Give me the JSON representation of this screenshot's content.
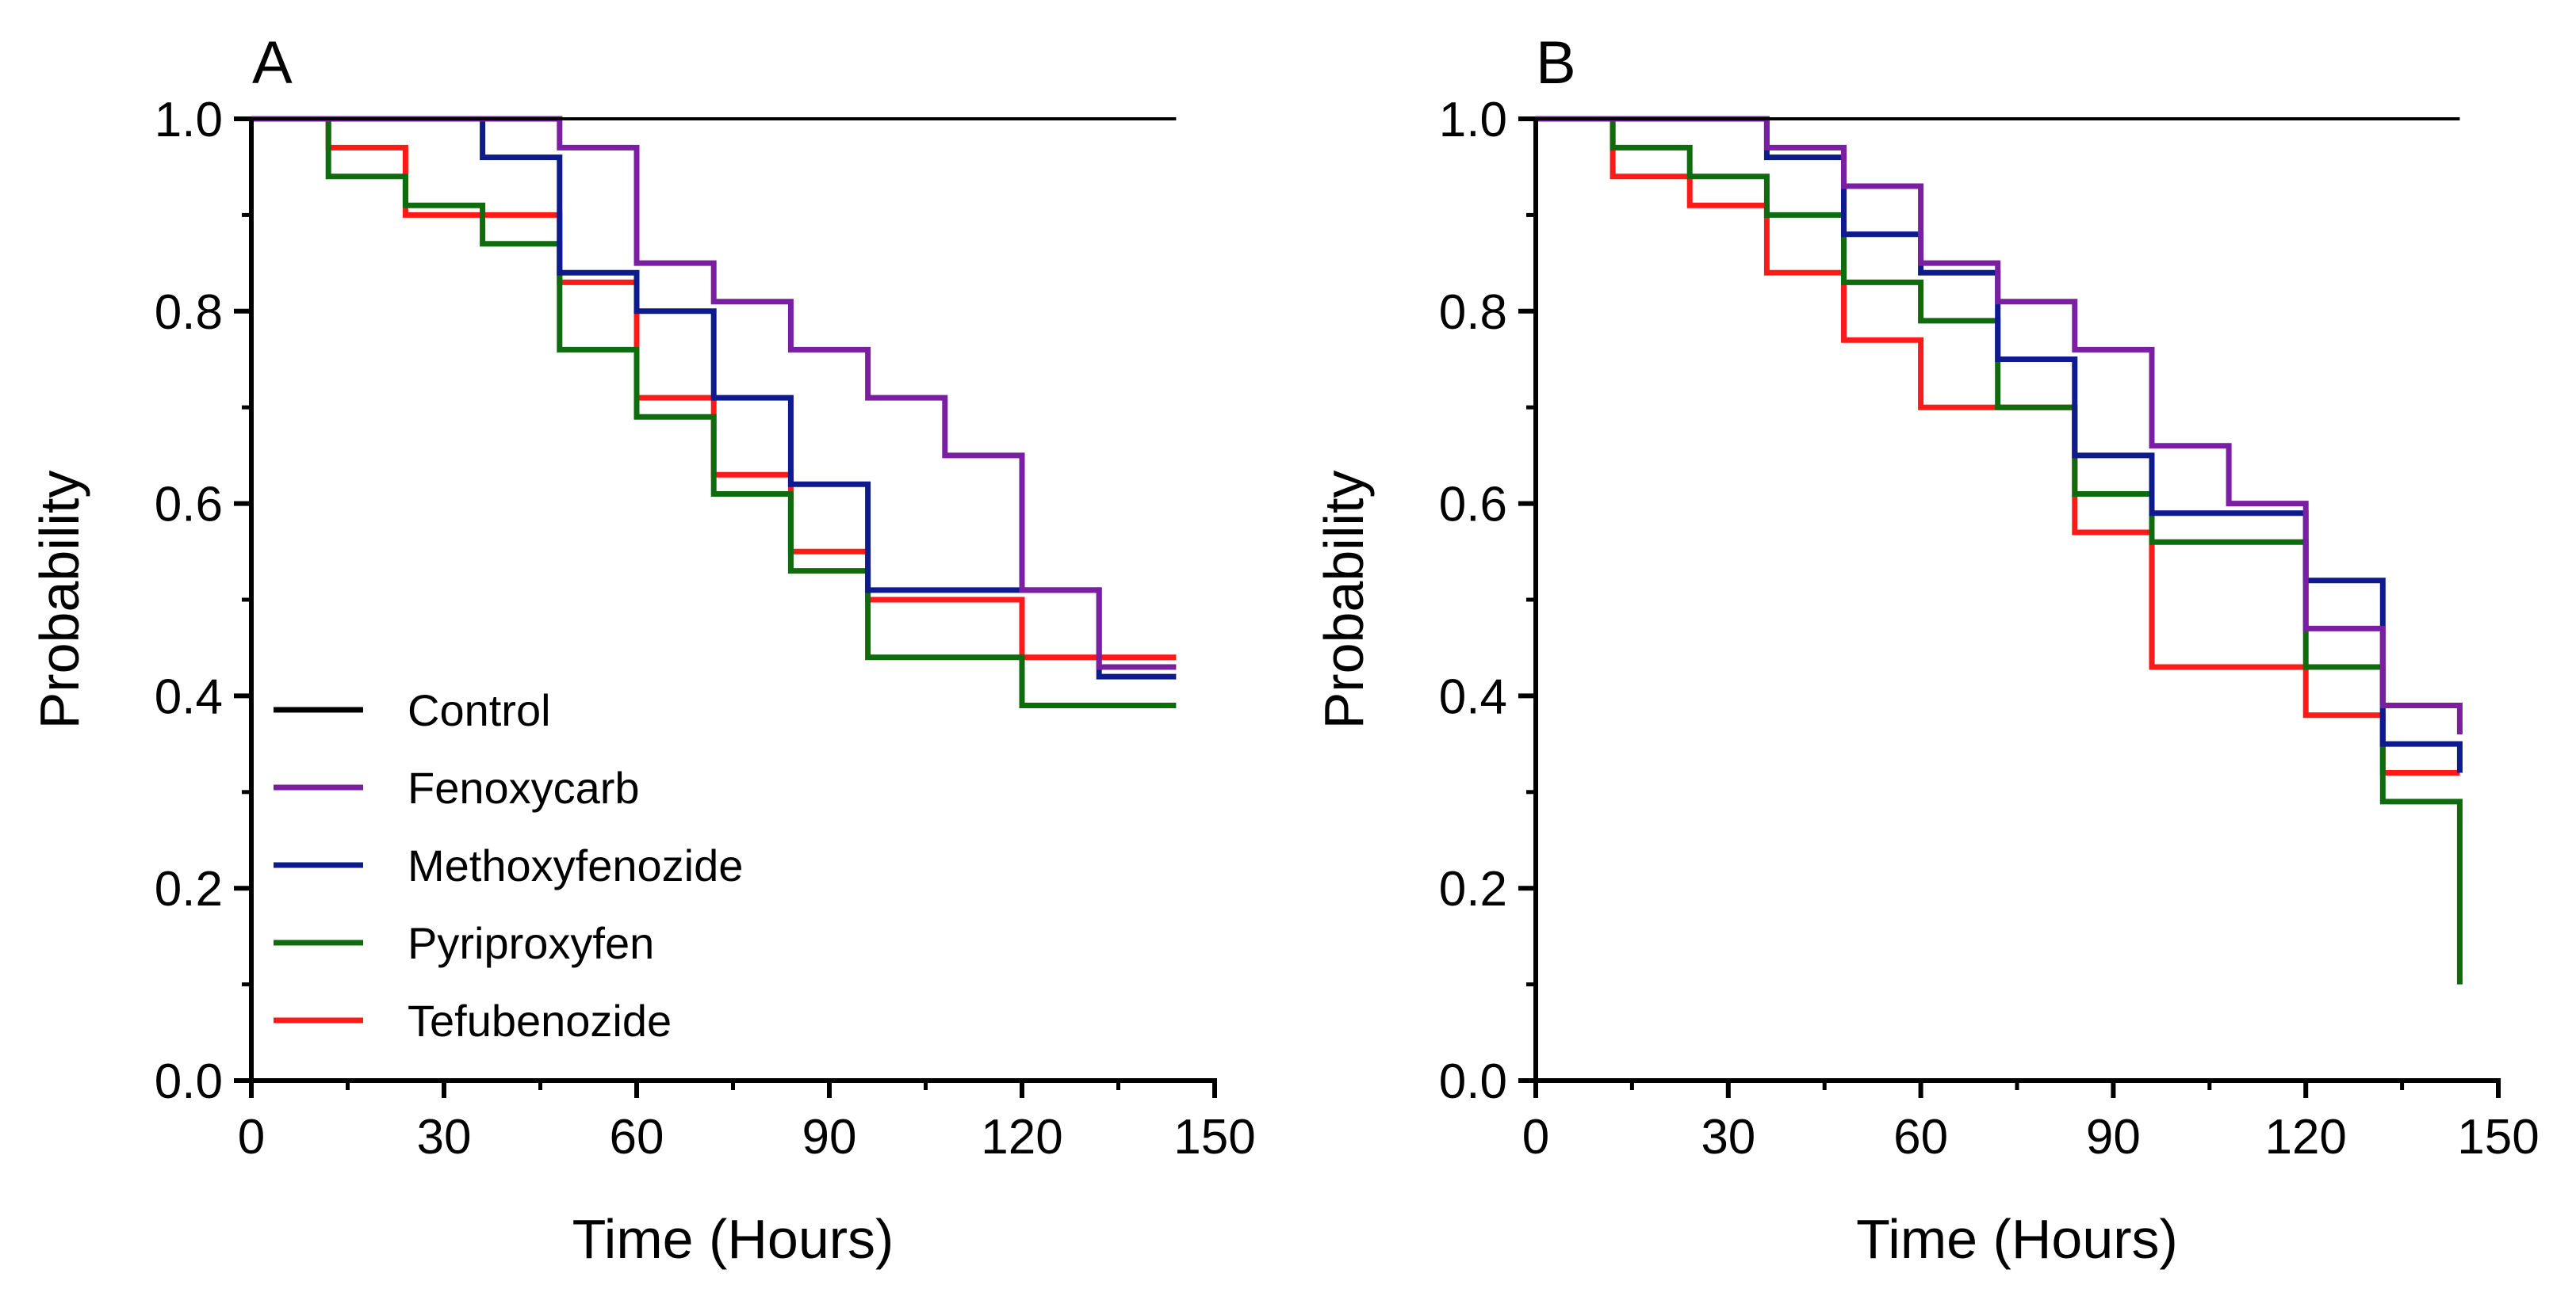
{
  "legend": [
    {
      "name": "Control",
      "color": "#000000"
    },
    {
      "name": "Fenoxycarb",
      "color": "#7B1FA2"
    },
    {
      "name": "Methoxyfenozide",
      "color": "#0D1B8C"
    },
    {
      "name": "Pyriproxyfen",
      "color": "#0E6B0E"
    },
    {
      "name": "Tefubenozide",
      "color": "#FF1A1A"
    }
  ],
  "chart_data": [
    {
      "type": "line",
      "step": true,
      "panel_label": "A",
      "xlabel": "Time (Hours)",
      "ylabel": "Probability",
      "xlim": [
        0,
        150
      ],
      "ylim": [
        0,
        1.0
      ],
      "xticks": [
        "0",
        "30",
        "60",
        "90",
        "120",
        "150"
      ],
      "yticks": [
        "0.0",
        "0.2",
        "0.4",
        "0.6",
        "0.8",
        "1.0"
      ],
      "grid": false,
      "legend_position": "bottom-left",
      "series": [
        {
          "name": "Control",
          "color": "#000000",
          "x": [
            0,
            144
          ],
          "y": [
            1.0,
            1.0
          ]
        },
        {
          "name": "Fenoxycarb",
          "color": "#7B1FA2",
          "x": [
            0,
            36,
            48,
            60,
            72,
            84,
            96,
            108,
            120,
            132,
            144
          ],
          "y": [
            1.0,
            1.0,
            0.97,
            0.85,
            0.81,
            0.76,
            0.71,
            0.65,
            0.51,
            0.43,
            0.43
          ]
        },
        {
          "name": "Methoxyfenozide",
          "color": "#0D1B8C",
          "x": [
            0,
            12,
            36,
            48,
            60,
            72,
            84,
            96,
            120,
            132,
            144
          ],
          "y": [
            1.0,
            1.0,
            0.96,
            0.84,
            0.8,
            0.71,
            0.62,
            0.51,
            0.51,
            0.42,
            0.42
          ]
        },
        {
          "name": "Pyriproxyfen",
          "color": "#0E6B0E",
          "x": [
            0,
            12,
            24,
            36,
            48,
            60,
            72,
            84,
            96,
            120,
            144
          ],
          "y": [
            1.0,
            0.94,
            0.91,
            0.87,
            0.76,
            0.69,
            0.61,
            0.53,
            0.44,
            0.39,
            0.39
          ]
        },
        {
          "name": "Tefubenozide",
          "color": "#FF1A1A",
          "x": [
            0,
            12,
            24,
            48,
            60,
            72,
            84,
            96,
            120,
            144
          ],
          "y": [
            1.0,
            0.97,
            0.9,
            0.83,
            0.71,
            0.63,
            0.55,
            0.5,
            0.44,
            0.44
          ]
        }
      ]
    },
    {
      "type": "line",
      "step": true,
      "panel_label": "B",
      "xlabel": "Time (Hours)",
      "ylabel": "Probability",
      "xlim": [
        0,
        150
      ],
      "ylim": [
        0,
        1.0
      ],
      "xticks": [
        "0",
        "30",
        "60",
        "90",
        "120",
        "150"
      ],
      "yticks": [
        "0.0",
        "0.2",
        "0.4",
        "0.6",
        "0.8",
        "1.0"
      ],
      "grid": false,
      "series": [
        {
          "name": "Control",
          "color": "#000000",
          "x": [
            0,
            144
          ],
          "y": [
            1.0,
            1.0
          ]
        },
        {
          "name": "Fenoxycarb",
          "color": "#7B1FA2",
          "x": [
            0,
            36,
            48,
            60,
            72,
            84,
            96,
            108,
            120,
            132,
            144
          ],
          "y": [
            1.0,
            0.97,
            0.93,
            0.85,
            0.81,
            0.76,
            0.66,
            0.6,
            0.47,
            0.39,
            0.36
          ]
        },
        {
          "name": "Methoxyfenozide",
          "color": "#0D1B8C",
          "x": [
            0,
            12,
            36,
            48,
            60,
            72,
            84,
            96,
            120,
            132,
            144
          ],
          "y": [
            1.0,
            1.0,
            0.96,
            0.88,
            0.84,
            0.75,
            0.65,
            0.59,
            0.52,
            0.35,
            0.32
          ]
        },
        {
          "name": "Pyriproxyfen",
          "color": "#0E6B0E",
          "x": [
            0,
            12,
            24,
            36,
            48,
            60,
            72,
            84,
            96,
            120,
            132,
            144
          ],
          "y": [
            1.0,
            0.97,
            0.94,
            0.9,
            0.83,
            0.79,
            0.7,
            0.61,
            0.56,
            0.43,
            0.29,
            0.1
          ]
        },
        {
          "name": "Tefubenozide",
          "color": "#FF1A1A",
          "x": [
            0,
            12,
            24,
            36,
            48,
            60,
            84,
            96,
            120,
            132,
            144
          ],
          "y": [
            1.0,
            0.94,
            0.91,
            0.84,
            0.77,
            0.7,
            0.57,
            0.43,
            0.38,
            0.32,
            0.32
          ]
        }
      ]
    }
  ]
}
